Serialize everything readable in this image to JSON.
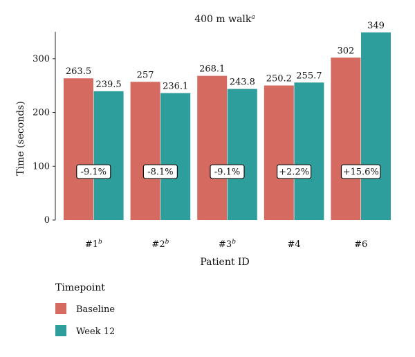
{
  "chart_data": {
    "type": "bar",
    "title": "400 m walk",
    "title_superscript": "a",
    "xlabel": "Patient ID",
    "ylabel": "Time (seconds)",
    "ylim": [
      0,
      350
    ],
    "yticks": [
      0,
      100,
      200,
      300
    ],
    "grid": false,
    "categories": [
      {
        "label": "#1",
        "sup": "b"
      },
      {
        "label": "#2",
        "sup": "b"
      },
      {
        "label": "#3",
        "sup": "b"
      },
      {
        "label": "#4",
        "sup": ""
      },
      {
        "label": "#6",
        "sup": ""
      }
    ],
    "series": [
      {
        "name": "Baseline",
        "color": "#D56B60",
        "values": [
          263.5,
          257,
          268.1,
          250.2,
          302
        ],
        "labels": [
          "263.5",
          "257",
          "268.1",
          "250.2",
          "302"
        ]
      },
      {
        "name": "Week 12",
        "color": "#2E9E9C",
        "values": [
          239.5,
          236.1,
          243.8,
          255.7,
          349
        ],
        "labels": [
          "239.5",
          "236.1",
          "243.8",
          "255.7",
          "349"
        ]
      }
    ],
    "change_labels": [
      "-9.1%",
      "-8.1%",
      "-9.1%",
      "+2.2%",
      "+15.6%"
    ],
    "change_label_y": 90,
    "legend": {
      "title": "Timepoint",
      "placement": "bottom-left"
    }
  }
}
